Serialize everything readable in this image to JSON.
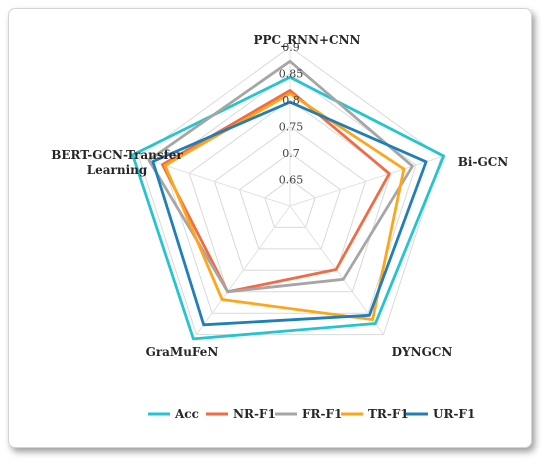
{
  "chart_data": {
    "type": "radar",
    "axes": [
      {
        "lines": [
          "PPC_RNN+CNN"
        ]
      },
      {
        "lines": [
          "Bi-GCN"
        ]
      },
      {
        "lines": [
          "DYNGCN"
        ]
      },
      {
        "lines": [
          "GraMuFeN"
        ]
      },
      {
        "lines": [
          "BERT-GCN-Transfer",
          "Learning"
        ]
      }
    ],
    "range": [
      0.6,
      0.9
    ],
    "ticks": [
      "0.65",
      "0.7",
      "0.75",
      "0.8",
      "0.85",
      "0.9"
    ],
    "tick_values": [
      0.65,
      0.7,
      0.75,
      0.8,
      0.85,
      0.9
    ],
    "grid": true,
    "legend_position": "bottom",
    "series": [
      {
        "name": "Acc",
        "color": "#25c4d1",
        "values": [
          0.843,
          0.905,
          0.874,
          0.91,
          0.912
        ]
      },
      {
        "name": "NR-F1",
        "color": "#f26b44",
        "values": [
          0.818,
          0.797,
          0.748,
          0.8,
          0.853
        ]
      },
      {
        "name": "FR-F1",
        "color": "#a6a6a6",
        "values": [
          0.873,
          0.843,
          0.771,
          0.8,
          0.88
        ]
      },
      {
        "name": "TR-F1",
        "color": "#ffa51a",
        "values": [
          0.812,
          0.826,
          0.865,
          0.818,
          0.848
        ]
      },
      {
        "name": "UR-F1",
        "color": "#1f7fb8",
        "values": [
          0.796,
          0.87,
          0.855,
          0.877,
          0.872
        ]
      }
    ]
  }
}
